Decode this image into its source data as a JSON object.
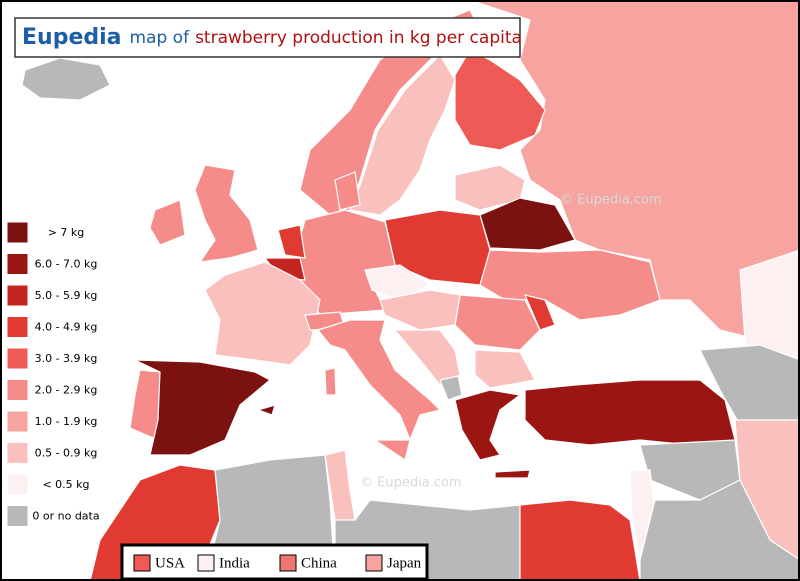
{
  "header": {
    "brand": "Eupedia",
    "title_prefix": "map of",
    "title": "strawberry production in kg per capita"
  },
  "legend": {
    "items": [
      {
        "label": "> 7 kg",
        "color": "#7b1210"
      },
      {
        "label": "6.0 - 7.0 kg",
        "color": "#9b1512"
      },
      {
        "label": "5.0 - 5.9 kg",
        "color": "#c42520"
      },
      {
        "label": "4.0 - 4.9 kg",
        "color": "#e03a33"
      },
      {
        "label": "3.0 - 3.9 kg",
        "color": "#ee5a55"
      },
      {
        "label": "2.0 - 2.9 kg",
        "color": "#f58c8a"
      },
      {
        "label": "1.0 - 1.9 kg",
        "color": "#f7a3a0"
      },
      {
        "label": "0.5 - 0.9 kg",
        "color": "#f9c0be"
      },
      {
        "label": "< 0.5 kg",
        "color": "#fdf0f0"
      },
      {
        "label": "0 or no data",
        "color": "#b8b8b8"
      }
    ]
  },
  "comparison": {
    "items": [
      {
        "label": "USA",
        "color": "#ee5a55"
      },
      {
        "label": "India",
        "color": "#fdf0f0"
      },
      {
        "label": "China",
        "color": "#f07470"
      },
      {
        "label": "Japan",
        "color": "#f7a3a0"
      }
    ]
  },
  "watermarks": [
    "©  Eupedia.com",
    "©  Eupedia.com"
  ]
}
